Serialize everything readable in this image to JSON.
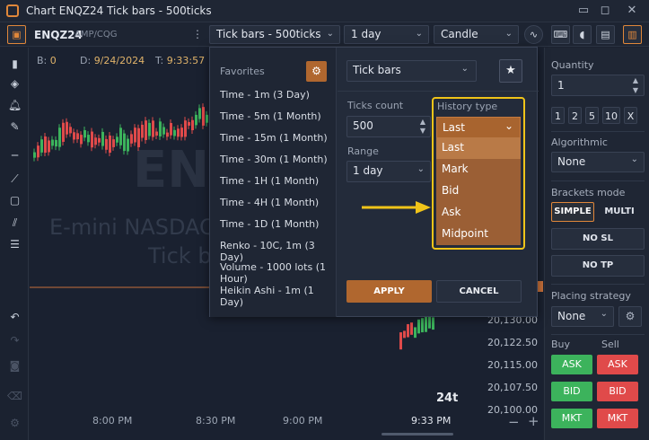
{
  "window": {
    "title": "Chart ENQZ24 Tick bars - 500ticks"
  },
  "toolbar": {
    "symbol": "ENQZ24",
    "feed": "AMP/CQG",
    "chart_type": "Tick bars - 500ticks",
    "period": "1 day",
    "style": "Candle"
  },
  "chart": {
    "info": {
      "b_label": "B:",
      "b_value": "0",
      "d_label": "D:",
      "d_value": "9/24/2024",
      "t_label": "T:",
      "t_value": "9:33:57"
    },
    "watermark_line1": "E-mini NASDAQ",
    "watermark_line2": "Tick b",
    "watermark_big": "ENQ",
    "prices": [
      "20,130.00",
      "20,122.50",
      "20,115.00",
      "20,107.50",
      "20,100.00"
    ],
    "times": [
      "8:00 PM",
      "8:30 PM",
      "9:00 PM",
      "9:33 PM"
    ],
    "tick_count": "24t",
    "zoom_out": "−",
    "zoom_in": "+"
  },
  "dialog": {
    "favorites_title": "Favorites",
    "favorites": [
      "Time - 1m (3 Day)",
      "Time - 5m (1 Month)",
      "Time - 15m (1 Month)",
      "Time - 30m (1 Month)",
      "Time - 1H (1 Month)",
      "Time - 4H (1 Month)",
      "Time - 1D (1 Month)",
      "Renko - 10C, 1m (3 Day)",
      "Volume - 1000 lots (1 Hour)",
      "Heikin Ashi - 1m (1 Day)"
    ],
    "type_value": "Tick bars",
    "ticks_label": "Ticks count",
    "ticks_value": "500",
    "range_label": "Range",
    "range_value": "1 day",
    "history_label": "History type",
    "history_value": "Last",
    "history_options": [
      "Last",
      "Mark",
      "Bid",
      "Ask",
      "Midpoint"
    ],
    "apply_label": "APPLY",
    "cancel_label": "CANCEL"
  },
  "rightpanel": {
    "quantity_label": "Quantity",
    "quantity_value": "1",
    "quick_qty": [
      "1",
      "2",
      "5",
      "10",
      "X"
    ],
    "algorithmic_label": "Algorithmic",
    "algorithmic_value": "None",
    "brackets_label": "Brackets mode",
    "simple_label": "SIMPLE",
    "multi_label": "MULTI",
    "no_sl_label": "NO SL",
    "no_tp_label": "NO TP",
    "placing_label": "Placing strategy",
    "placing_value": "None",
    "buy_label": "Buy",
    "sell_label": "Sell",
    "buy_buttons": [
      "ASK",
      "BID",
      "MKT"
    ],
    "sell_buttons": [
      "ASK",
      "BID",
      "MKT"
    ]
  },
  "colors": {
    "accent": "#e0873a",
    "highlight": "#f0c419",
    "buy": "#3cb35c",
    "sell": "#e04a4a",
    "dropdown_option": "#9b5f35"
  }
}
